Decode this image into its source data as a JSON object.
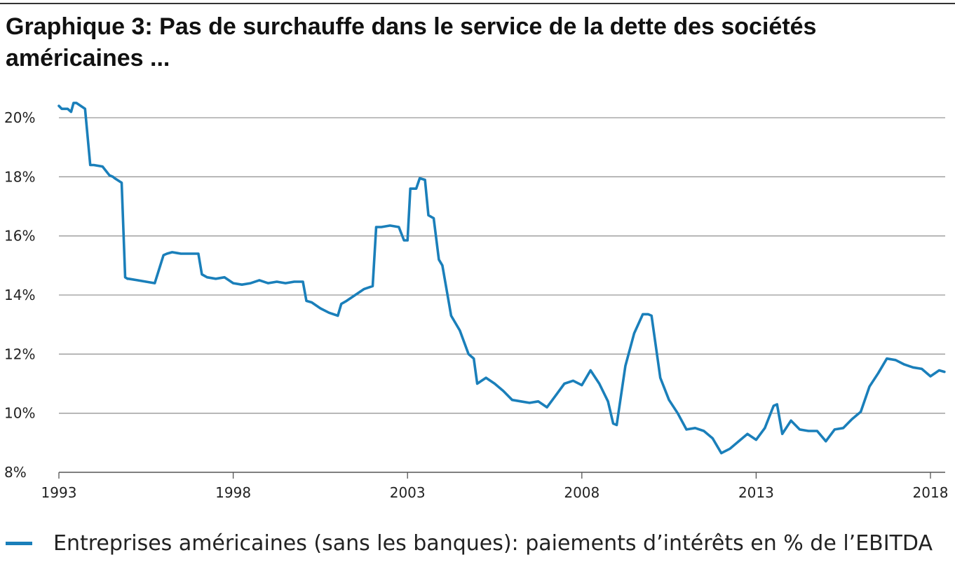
{
  "title": "Graphique 3: Pas de surchauffe dans le service de la dette des sociétés américaines ...",
  "colors": {
    "series": "#1a7fba",
    "grid": "#999999",
    "text": "#222222"
  },
  "chart_data": {
    "type": "line",
    "title": "Graphique 3: Pas de surchauffe dans le service de la dette des sociétés américaines ...",
    "xlabel": "",
    "ylabel": "",
    "xlim": [
      1993,
      2018.4
    ],
    "ylim": [
      8,
      20
    ],
    "y_ticks": [
      8,
      10,
      12,
      14,
      16,
      18,
      20
    ],
    "y_tick_labels": [
      "8%",
      "10%",
      "12%",
      "14%",
      "16%",
      "18%",
      "20%"
    ],
    "x_ticks": [
      1993,
      1998,
      2003,
      2008,
      2013,
      2018
    ],
    "x_tick_labels": [
      "1993",
      "1998",
      "2003",
      "2008",
      "2013",
      "2018"
    ],
    "grid": "horizontal",
    "legend_position": "bottom-left",
    "series": [
      {
        "name": "Entreprises américaines (sans les banques): paiements d’intérêts en % de l’EBITDA",
        "x": [
          1993.0,
          1993.08,
          1993.25,
          1993.35,
          1993.42,
          1993.5,
          1993.75,
          1993.9,
          1993.97,
          1994.0,
          1994.25,
          1994.45,
          1994.55,
          1994.6,
          1994.8,
          1994.9,
          1994.97,
          1995.0,
          1995.25,
          1995.5,
          1995.75,
          1996.0,
          1996.1,
          1996.25,
          1996.5,
          1996.75,
          1997.0,
          1997.1,
          1997.25,
          1997.5,
          1997.75,
          1998.0,
          1998.25,
          1998.5,
          1998.75,
          1999.0,
          1999.25,
          1999.5,
          1999.75,
          2000.0,
          2000.1,
          2000.25,
          2000.5,
          2000.75,
          2001.0,
          2001.1,
          2001.25,
          2001.5,
          2001.75,
          2002.0,
          2002.1,
          2002.25,
          2002.5,
          2002.75,
          2002.9,
          2003.0,
          2003.08,
          2003.25,
          2003.35,
          2003.5,
          2003.6,
          2003.75,
          2003.9,
          2004.0,
          2004.25,
          2004.5,
          2004.75,
          2004.9,
          2005.0,
          2005.25,
          2005.5,
          2005.75,
          2006.0,
          2006.25,
          2006.5,
          2006.75,
          2007.0,
          2007.25,
          2007.5,
          2007.75,
          2008.0,
          2008.25,
          2008.5,
          2008.75,
          2008.9,
          2009.0,
          2009.25,
          2009.5,
          2009.75,
          2009.9,
          2010.0,
          2010.25,
          2010.5,
          2010.75,
          2011.0,
          2011.25,
          2011.5,
          2011.75,
          2012.0,
          2012.25,
          2012.5,
          2012.75,
          2013.0,
          2013.25,
          2013.5,
          2013.6,
          2013.75,
          2014.0,
          2014.25,
          2014.5,
          2014.75,
          2015.0,
          2015.25,
          2015.5,
          2015.75,
          2016.0,
          2016.25,
          2016.5,
          2016.75,
          2017.0,
          2017.25,
          2017.5,
          2017.75,
          2018.0,
          2018.25,
          2018.4
        ],
        "y": [
          20.4,
          20.3,
          20.3,
          20.2,
          20.5,
          20.5,
          20.3,
          18.4,
          18.4,
          18.4,
          18.35,
          18.05,
          18.0,
          17.95,
          17.8,
          14.6,
          14.55,
          14.55,
          14.5,
          14.45,
          14.4,
          15.35,
          15.4,
          15.45,
          15.4,
          15.4,
          15.4,
          14.7,
          14.6,
          14.55,
          14.6,
          14.4,
          14.35,
          14.4,
          14.5,
          14.4,
          14.45,
          14.4,
          14.45,
          14.45,
          13.8,
          13.75,
          13.55,
          13.4,
          13.3,
          13.7,
          13.8,
          14.0,
          14.2,
          14.3,
          16.3,
          16.3,
          16.35,
          16.3,
          15.85,
          15.85,
          17.6,
          17.6,
          17.95,
          17.9,
          16.7,
          16.6,
          15.2,
          15.0,
          13.3,
          12.8,
          12.0,
          11.85,
          11.0,
          11.2,
          11.0,
          10.75,
          10.45,
          10.4,
          10.35,
          10.4,
          10.2,
          10.6,
          11.0,
          11.1,
          10.95,
          11.45,
          11.0,
          10.4,
          9.65,
          9.6,
          11.6,
          12.7,
          13.35,
          13.35,
          13.3,
          11.2,
          10.45,
          10.0,
          9.45,
          9.5,
          9.4,
          9.15,
          8.65,
          8.8,
          9.05,
          9.3,
          9.1,
          9.5,
          10.25,
          10.3,
          9.3,
          9.75,
          9.45,
          9.4,
          9.4,
          9.05,
          9.45,
          9.5,
          9.8,
          10.05,
          10.9,
          11.35,
          11.85,
          11.8,
          11.65,
          11.55,
          11.5,
          11.25,
          11.45,
          11.4
        ]
      }
    ]
  },
  "legend": {
    "label": "Entreprises américaines (sans les banques): paiements d’intérêts en % de l’EBITDA"
  }
}
